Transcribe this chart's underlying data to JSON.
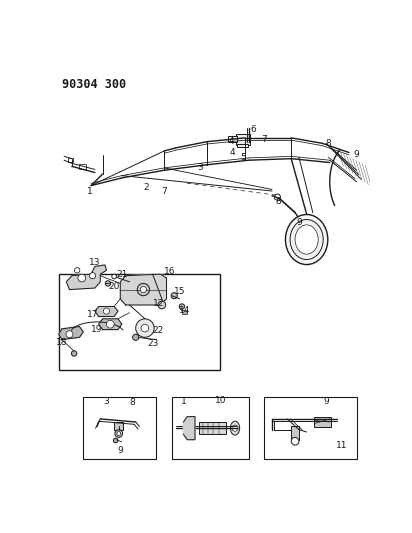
{
  "title": "90304 300",
  "bg_color": "#ffffff",
  "line_color": "#1a1a1a",
  "fig_width": 4.12,
  "fig_height": 5.33,
  "dpi": 100
}
